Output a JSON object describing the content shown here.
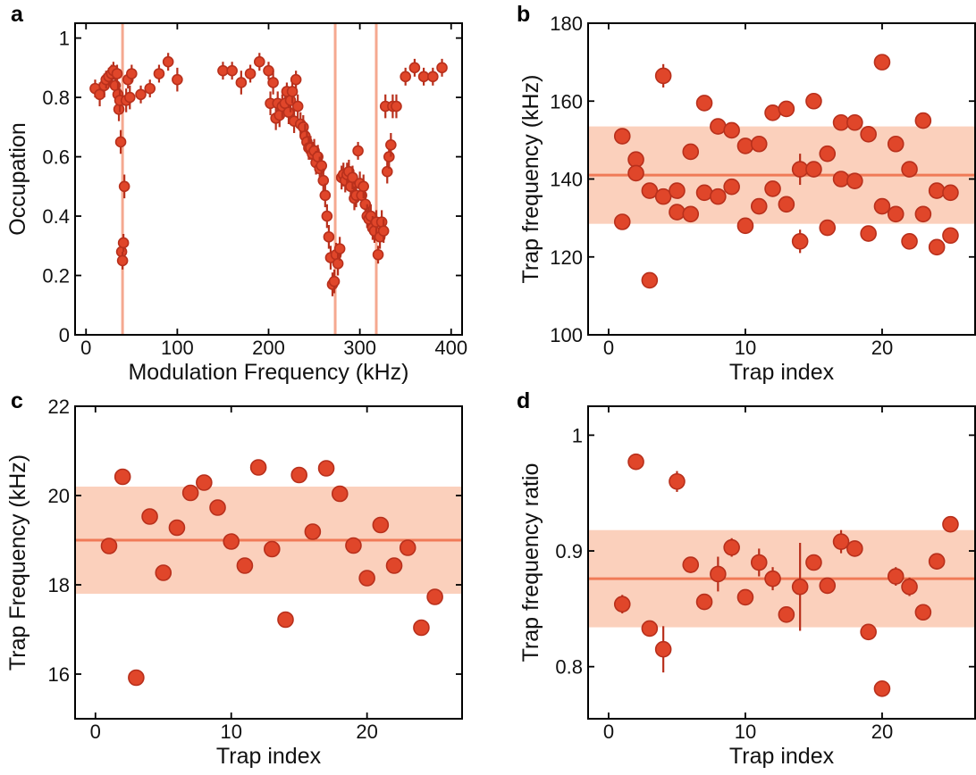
{
  "colors": {
    "marker_fill": "#e0462a",
    "marker_edge": "#b8301c",
    "mean_line": "#f07a57",
    "band": "#fbd0bc",
    "resonance_line": "#f5a990",
    "axis": "#000000"
  },
  "chart_data": [
    {
      "panel": "a",
      "type": "scatter",
      "xlabel": "Modulation Frequency (kHz)",
      "ylabel": "Occupation",
      "xlim": [
        -12,
        412
      ],
      "ylim": [
        0,
        1.05
      ],
      "xticks": [
        0,
        100,
        200,
        300,
        400
      ],
      "yticks": [
        0,
        0.2,
        0.4,
        0.6,
        0.8,
        1
      ],
      "ytick_labels": [
        "0",
        "0.2",
        "0.4",
        "0.6",
        "0.8",
        "1"
      ],
      "vlines": [
        40,
        273,
        318
      ],
      "points": [
        [
          10,
          0.83,
          0.03
        ],
        [
          15,
          0.81,
          0.04
        ],
        [
          20,
          0.84,
          0.04
        ],
        [
          22,
          0.86,
          0.03
        ],
        [
          25,
          0.87,
          0.03
        ],
        [
          28,
          0.88,
          0.03
        ],
        [
          30,
          0.89,
          0.03
        ],
        [
          32,
          0.84,
          0.03
        ],
        [
          34,
          0.88,
          0.03
        ],
        [
          35,
          0.81,
          0.04
        ],
        [
          36,
          0.76,
          0.04
        ],
        [
          37,
          0.79,
          0.04
        ],
        [
          38,
          0.65,
          0.04
        ],
        [
          39,
          0.28,
          0.04
        ],
        [
          40,
          0.25,
          0.03
        ],
        [
          41,
          0.31,
          0.03
        ],
        [
          42,
          0.5,
          0.04
        ],
        [
          44,
          0.79,
          0.04
        ],
        [
          46,
          0.86,
          0.03
        ],
        [
          48,
          0.8,
          0.04
        ],
        [
          50,
          0.88,
          0.03
        ],
        [
          60,
          0.81,
          0.03
        ],
        [
          70,
          0.83,
          0.03
        ],
        [
          80,
          0.88,
          0.03
        ],
        [
          90,
          0.92,
          0.03
        ],
        [
          100,
          0.86,
          0.04
        ],
        [
          150,
          0.89,
          0.03
        ],
        [
          160,
          0.89,
          0.03
        ],
        [
          170,
          0.85,
          0.04
        ],
        [
          180,
          0.88,
          0.03
        ],
        [
          190,
          0.92,
          0.03
        ],
        [
          200,
          0.89,
          0.03
        ],
        [
          202,
          0.78,
          0.04
        ],
        [
          205,
          0.85,
          0.04
        ],
        [
          208,
          0.73,
          0.04
        ],
        [
          210,
          0.78,
          0.04
        ],
        [
          212,
          0.74,
          0.04
        ],
        [
          215,
          0.77,
          0.04
        ],
        [
          218,
          0.78,
          0.04
        ],
        [
          220,
          0.82,
          0.03
        ],
        [
          222,
          0.75,
          0.04
        ],
        [
          224,
          0.79,
          0.04
        ],
        [
          226,
          0.82,
          0.04
        ],
        [
          228,
          0.72,
          0.04
        ],
        [
          230,
          0.86,
          0.03
        ],
        [
          232,
          0.77,
          0.04
        ],
        [
          235,
          0.71,
          0.04
        ],
        [
          238,
          0.7,
          0.04
        ],
        [
          240,
          0.67,
          0.04
        ],
        [
          242,
          0.65,
          0.04
        ],
        [
          244,
          0.63,
          0.04
        ],
        [
          246,
          0.63,
          0.04
        ],
        [
          248,
          0.61,
          0.04
        ],
        [
          250,
          0.62,
          0.04
        ],
        [
          252,
          0.58,
          0.04
        ],
        [
          254,
          0.6,
          0.04
        ],
        [
          256,
          0.56,
          0.04
        ],
        [
          258,
          0.57,
          0.04
        ],
        [
          260,
          0.52,
          0.04
        ],
        [
          262,
          0.47,
          0.04
        ],
        [
          264,
          0.4,
          0.04
        ],
        [
          266,
          0.33,
          0.04
        ],
        [
          268,
          0.26,
          0.04
        ],
        [
          270,
          0.17,
          0.04
        ],
        [
          272,
          0.18,
          0.04
        ],
        [
          274,
          0.27,
          0.04
        ],
        [
          276,
          0.24,
          0.04
        ],
        [
          278,
          0.29,
          0.04
        ],
        [
          280,
          0.53,
          0.04
        ],
        [
          282,
          0.54,
          0.04
        ],
        [
          284,
          0.52,
          0.04
        ],
        [
          286,
          0.54,
          0.04
        ],
        [
          288,
          0.55,
          0.04
        ],
        [
          290,
          0.5,
          0.04
        ],
        [
          292,
          0.53,
          0.04
        ],
        [
          294,
          0.46,
          0.04
        ],
        [
          296,
          0.47,
          0.04
        ],
        [
          298,
          0.62,
          0.03
        ],
        [
          300,
          0.51,
          0.04
        ],
        [
          302,
          0.47,
          0.04
        ],
        [
          304,
          0.5,
          0.04
        ],
        [
          306,
          0.44,
          0.04
        ],
        [
          308,
          0.4,
          0.04
        ],
        [
          310,
          0.39,
          0.04
        ],
        [
          312,
          0.4,
          0.04
        ],
        [
          314,
          0.36,
          0.04
        ],
        [
          316,
          0.35,
          0.04
        ],
        [
          318,
          0.38,
          0.04
        ],
        [
          320,
          0.27,
          0.03
        ],
        [
          322,
          0.33,
          0.04
        ],
        [
          324,
          0.38,
          0.04
        ],
        [
          326,
          0.35,
          0.04
        ],
        [
          328,
          0.77,
          0.04
        ],
        [
          330,
          0.55,
          0.04
        ],
        [
          332,
          0.6,
          0.04
        ],
        [
          334,
          0.64,
          0.04
        ],
        [
          336,
          0.77,
          0.04
        ],
        [
          340,
          0.77,
          0.04
        ],
        [
          350,
          0.87,
          0.03
        ],
        [
          360,
          0.9,
          0.03
        ],
        [
          370,
          0.87,
          0.03
        ],
        [
          380,
          0.87,
          0.03
        ],
        [
          390,
          0.9,
          0.03
        ]
      ]
    },
    {
      "panel": "b",
      "type": "scatter",
      "xlabel": "Trap index",
      "ylabel": "Trap frequency (kHz)",
      "xlim": [
        -1.5,
        26.8
      ],
      "ylim": [
        100,
        180
      ],
      "xticks": [
        0,
        10,
        20
      ],
      "yticks": [
        100,
        120,
        140,
        160,
        180
      ],
      "ytick_labels": [
        "100",
        "120",
        "140",
        "160",
        "180"
      ],
      "mean": 141,
      "band": [
        128.5,
        153.5
      ],
      "points": [
        [
          1,
          151,
          0
        ],
        [
          1,
          129,
          0
        ],
        [
          2,
          145,
          0
        ],
        [
          2,
          141.5,
          0
        ],
        [
          3,
          137,
          0
        ],
        [
          3,
          114,
          0
        ],
        [
          4,
          166.5,
          3
        ],
        [
          4,
          135.5,
          0
        ],
        [
          5,
          137,
          0
        ],
        [
          5,
          131.5,
          0
        ],
        [
          6,
          147,
          0
        ],
        [
          6,
          131,
          0
        ],
        [
          7,
          159.5,
          0
        ],
        [
          7,
          136.5,
          0
        ],
        [
          8,
          153.5,
          0
        ],
        [
          8,
          135.5,
          0
        ],
        [
          9,
          152.5,
          0
        ],
        [
          9,
          138,
          0
        ],
        [
          10,
          148.5,
          0
        ],
        [
          10,
          128,
          0
        ],
        [
          11,
          149,
          0
        ],
        [
          11,
          133,
          0
        ],
        [
          12,
          157,
          0
        ],
        [
          12,
          137.5,
          0
        ],
        [
          13,
          158,
          0
        ],
        [
          13,
          133.5,
          0
        ],
        [
          14,
          142.5,
          4
        ],
        [
          14,
          124,
          3
        ],
        [
          15,
          160,
          0
        ],
        [
          15,
          142.5,
          0
        ],
        [
          16,
          146.5,
          0
        ],
        [
          16,
          127.5,
          0
        ],
        [
          17,
          154.5,
          0
        ],
        [
          17,
          140,
          0
        ],
        [
          18,
          154.5,
          0
        ],
        [
          18,
          139.5,
          0
        ],
        [
          19,
          151.5,
          0
        ],
        [
          19,
          126,
          0
        ],
        [
          20,
          170,
          0
        ],
        [
          20,
          133,
          0
        ],
        [
          21,
          149,
          0
        ],
        [
          21,
          131,
          0
        ],
        [
          22,
          142.5,
          0
        ],
        [
          22,
          124,
          0
        ],
        [
          23,
          155,
          0
        ],
        [
          23,
          131,
          0
        ],
        [
          24,
          137,
          0
        ],
        [
          24,
          122.5,
          0
        ],
        [
          25,
          136.5,
          0
        ],
        [
          25,
          125.5,
          0
        ]
      ]
    },
    {
      "panel": "c",
      "type": "scatter",
      "xlabel": "Trap index",
      "ylabel": "Trap Frequency (kHz)",
      "xlim": [
        -1.5,
        27
      ],
      "ylim": [
        15,
        22
      ],
      "xticks": [
        0,
        10,
        20
      ],
      "yticks": [
        16,
        18,
        20,
        22
      ],
      "ytick_labels": [
        "16",
        "18",
        "20",
        "22"
      ],
      "mean": 19.0,
      "band": [
        17.8,
        20.2
      ],
      "points": [
        [
          1,
          18.87,
          0
        ],
        [
          2,
          20.42,
          0
        ],
        [
          3,
          15.92,
          0
        ],
        [
          4,
          19.53,
          0
        ],
        [
          5,
          18.27,
          0
        ],
        [
          6,
          19.28,
          0
        ],
        [
          7,
          20.06,
          0
        ],
        [
          8,
          20.29,
          0
        ],
        [
          9,
          19.73,
          0
        ],
        [
          10,
          18.97,
          0
        ],
        [
          11,
          18.43,
          0
        ],
        [
          12,
          20.63,
          0
        ],
        [
          13,
          18.8,
          0
        ],
        [
          14,
          17.22,
          0
        ],
        [
          15,
          20.46,
          0
        ],
        [
          16,
          19.19,
          0
        ],
        [
          17,
          20.61,
          0
        ],
        [
          18,
          20.04,
          0
        ],
        [
          19,
          18.88,
          0
        ],
        [
          20,
          18.15,
          0
        ],
        [
          21,
          19.34,
          0
        ],
        [
          22,
          18.43,
          0
        ],
        [
          23,
          18.83,
          0
        ],
        [
          24,
          17.04,
          0
        ],
        [
          25,
          17.73,
          0
        ]
      ]
    },
    {
      "panel": "d",
      "type": "scatter",
      "xlabel": "Trap index",
      "ylabel": "Trap frequency ratio",
      "xlim": [
        -1.5,
        26.8
      ],
      "ylim": [
        0.755,
        1.025
      ],
      "xticks": [
        0,
        10,
        20
      ],
      "yticks": [
        0.8,
        0.9,
        1
      ],
      "ytick_labels": [
        "0.8",
        "0.9",
        "1"
      ],
      "mean": 0.876,
      "band": [
        0.834,
        0.918
      ],
      "points": [
        [
          1,
          0.854,
          0.008
        ],
        [
          2,
          0.977,
          0
        ],
        [
          3,
          0.833,
          0
        ],
        [
          4,
          0.815,
          0.02
        ],
        [
          5,
          0.96,
          0.009
        ],
        [
          6,
          0.888,
          0.007
        ],
        [
          7,
          0.856,
          0
        ],
        [
          8,
          0.88,
          0.015
        ],
        [
          9,
          0.903,
          0.008
        ],
        [
          10,
          0.86,
          0
        ],
        [
          11,
          0.89,
          0.012
        ],
        [
          12,
          0.876,
          0.01
        ],
        [
          13,
          0.845,
          0
        ],
        [
          14,
          0.869,
          0.038
        ],
        [
          15,
          0.89,
          0
        ],
        [
          16,
          0.87,
          0
        ],
        [
          17,
          0.908,
          0.01
        ],
        [
          18,
          0.902,
          0.007
        ],
        [
          19,
          0.83,
          0
        ],
        [
          20,
          0.781,
          0
        ],
        [
          21,
          0.878,
          0.008
        ],
        [
          22,
          0.869,
          0.008
        ],
        [
          23,
          0.847,
          0
        ],
        [
          24,
          0.891,
          0.007
        ],
        [
          25,
          0.923,
          0
        ]
      ]
    }
  ]
}
